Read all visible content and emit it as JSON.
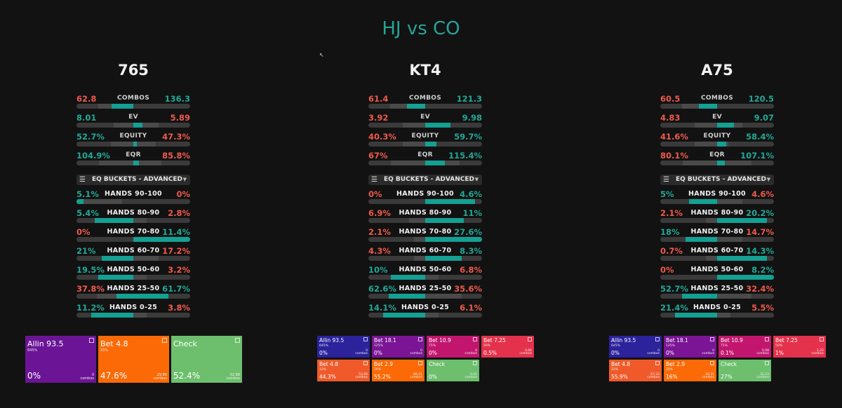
{
  "title": "HJ vs CO",
  "colors": {
    "teal": "#22a896",
    "red": "#ef5a4c",
    "allin": "#6b1596",
    "bet_orange": "#fb6a07",
    "check": "#6dbf6d",
    "blue": "#2b229c",
    "magenta": "#c2166e",
    "red_bet": "#e5324c",
    "orange_red": "#f05a2a"
  },
  "stat_labels": [
    "COMBOS",
    "EV",
    "EQUITY",
    "EQR"
  ],
  "dropdown_label": "EQ BUCKETS - ADVANCED",
  "bucket_labels": [
    "HANDS 90-100",
    "HANDS 80-90",
    "HANDS 70-80",
    "HANDS 60-70",
    "HANDS 50-60",
    "HANDS 25-50",
    "HANDS 0-25"
  ],
  "boards": [
    {
      "name": "765",
      "stats": [
        {
          "l": "62.8",
          "r": "136.3",
          "lc": "red",
          "rc": "teal",
          "fill": 0.31,
          "hl": [
            0.19,
            0.5
          ]
        },
        {
          "l": "8.01",
          "r": "5.89",
          "lc": "teal",
          "rc": "red",
          "fill": 0.58,
          "hl": [
            0.33,
            0.72
          ]
        },
        {
          "l": "52.7%",
          "r": "47.3%",
          "lc": "teal",
          "rc": "red",
          "fill": 0.53,
          "hl": [
            0.3,
            0.7
          ]
        },
        {
          "l": "104.9%",
          "r": "85.8%",
          "lc": "teal",
          "rc": "red",
          "fill": 0.55,
          "hl": [
            0.2,
            0.75
          ]
        }
      ],
      "buckets": [
        {
          "l": "5.1%",
          "r": "0%",
          "lc": "teal",
          "rc": "red",
          "fill": [
            0,
            0.06
          ],
          "hl": [
            0.06,
            0.4
          ]
        },
        {
          "l": "5.4%",
          "r": "2.8%",
          "lc": "teal",
          "rc": "red",
          "fill": [
            0.16,
            0.5
          ],
          "hl": [
            0.5,
            0.62
          ]
        },
        {
          "l": "0%",
          "r": "11.4%",
          "lc": "red",
          "rc": "teal",
          "fill": [
            0.5,
            1.0
          ],
          "hl": [
            0.0,
            0.0
          ]
        },
        {
          "l": "21%",
          "r": "17.2%",
          "lc": "teal",
          "rc": "red",
          "fill": [
            0.22,
            0.5
          ],
          "hl": [
            0.5,
            0.72
          ]
        },
        {
          "l": "19.5%",
          "r": "3.2%",
          "lc": "teal",
          "rc": "red",
          "fill": [
            0.19,
            0.5
          ],
          "hl": [
            0.5,
            0.62
          ]
        },
        {
          "l": "37.8%",
          "r": "61.7%",
          "lc": "red",
          "rc": "teal",
          "fill": [
            0.35,
            0.81
          ],
          "hl": [
            0.18,
            0.35
          ]
        },
        {
          "l": "11.2%",
          "r": "3.8%",
          "lc": "teal",
          "rc": "red",
          "fill": [
            0.13,
            0.5
          ],
          "hl": [
            0.5,
            0.62
          ]
        }
      ],
      "actions_layout": "big",
      "actions": [
        {
          "name": "Allin 93.5",
          "sub": "645%",
          "pct": "0%",
          "count": "0",
          "unit": "combos",
          "color": "#6b1596"
        },
        {
          "name": "Bet 4.8",
          "sub": "33%",
          "pct": "47.6%",
          "count": "29.89",
          "unit": "combos",
          "color": "#fb6a07"
        },
        {
          "name": "Check",
          "sub": "",
          "pct": "52.4%",
          "count": "32.88",
          "unit": "combos",
          "color": "#6dbf6d"
        }
      ]
    },
    {
      "name": "KT4",
      "stats": [
        {
          "l": "61.4",
          "r": "121.3",
          "lc": "red",
          "rc": "teal",
          "fill": 0.34,
          "hl": [
            0.19,
            0.5
          ]
        },
        {
          "l": "3.92",
          "r": "9.98",
          "lc": "red",
          "rc": "teal",
          "fill": 0.72,
          "hl": [
            0.3,
            0.72
          ]
        },
        {
          "l": "40.3%",
          "r": "59.7%",
          "lc": "red",
          "rc": "teal",
          "fill": 0.6,
          "hl": [
            0.3,
            0.6
          ]
        },
        {
          "l": "67%",
          "r": "115.4%",
          "lc": "red",
          "rc": "teal",
          "fill": 0.67,
          "hl": [
            0.2,
            0.8
          ]
        }
      ],
      "buckets": [
        {
          "l": "0%",
          "r": "4.6%",
          "lc": "red",
          "rc": "teal",
          "fill": [
            0.5,
            0.94
          ],
          "hl": [
            0.0,
            0.0
          ]
        },
        {
          "l": "6.9%",
          "r": "11%",
          "lc": "red",
          "rc": "teal",
          "fill": [
            0.5,
            0.84
          ],
          "hl": [
            0.36,
            0.5
          ]
        },
        {
          "l": "2.1%",
          "r": "27.6%",
          "lc": "red",
          "rc": "teal",
          "fill": [
            0.5,
            1.0
          ],
          "hl": [
            0.4,
            0.5
          ]
        },
        {
          "l": "4.3%",
          "r": "8.3%",
          "lc": "red",
          "rc": "teal",
          "fill": [
            0.5,
            0.82
          ],
          "hl": [
            0.4,
            0.5
          ]
        },
        {
          "l": "10%",
          "r": "6.8%",
          "lc": "teal",
          "rc": "red",
          "fill": [
            0.2,
            0.5
          ],
          "hl": [
            0.5,
            0.62
          ]
        },
        {
          "l": "62.6%",
          "r": "35.6%",
          "lc": "teal",
          "rc": "red",
          "fill": [
            0.18,
            0.5
          ],
          "hl": [
            0.5,
            0.82
          ]
        },
        {
          "l": "14.1%",
          "r": "6.1%",
          "lc": "teal",
          "rc": "red",
          "fill": [
            0.13,
            0.5
          ],
          "hl": [
            0.5,
            0.62
          ]
        }
      ],
      "actions_layout": "small",
      "actions": [
        {
          "name": "Allin 93.5",
          "sub": "645%",
          "pct": "0%",
          "count": "0",
          "unit": "combos",
          "color": "#2b229c"
        },
        {
          "name": "Bet 18.1",
          "sub": "125%",
          "pct": "0%",
          "count": "0",
          "unit": "combos",
          "color": "#7b1596"
        },
        {
          "name": "Bet 10.9",
          "sub": "75%",
          "pct": "0%",
          "count": "0",
          "unit": "combos",
          "color": "#c2166e"
        },
        {
          "name": "Bet 7.25",
          "sub": "50%",
          "pct": "0.5%",
          "count": "0.66",
          "unit": "combos",
          "color": "#e5324c"
        },
        {
          "name": "Bet 4.8",
          "sub": "33%",
          "pct": "44.3%",
          "count": "53.69",
          "unit": "combos",
          "color": "#f05a2a"
        },
        {
          "name": "Bet 2.9",
          "sub": "20%",
          "pct": "55.2%",
          "count": "66.91",
          "unit": "combos",
          "color": "#fb6a07"
        },
        {
          "name": "Check",
          "sub": "",
          "pct": "0%",
          "count": "0.02",
          "unit": "combos",
          "color": "#6dbf6d"
        }
      ]
    },
    {
      "name": "A75",
      "stats": [
        {
          "l": "60.5",
          "r": "120.5",
          "lc": "red",
          "rc": "teal",
          "fill": 0.34,
          "hl": [
            0.19,
            0.5
          ]
        },
        {
          "l": "4.83",
          "r": "9.07",
          "lc": "red",
          "rc": "teal",
          "fill": 0.65,
          "hl": [
            0.3,
            0.72
          ]
        },
        {
          "l": "41.6%",
          "r": "58.4%",
          "lc": "red",
          "rc": "teal",
          "fill": 0.58,
          "hl": [
            0.3,
            0.6
          ]
        },
        {
          "l": "80.1%",
          "r": "107.1%",
          "lc": "red",
          "rc": "teal",
          "fill": 0.57,
          "hl": [
            0.2,
            0.8
          ]
        }
      ],
      "buckets": [
        {
          "l": "5%",
          "r": "4.6%",
          "lc": "teal",
          "rc": "red",
          "fill": [
            0.25,
            0.5
          ],
          "hl": [
            0.5,
            0.72
          ]
        },
        {
          "l": "2.1%",
          "r": "20.2%",
          "lc": "red",
          "rc": "teal",
          "fill": [
            0.5,
            0.94
          ],
          "hl": [
            0.4,
            0.5
          ]
        },
        {
          "l": "18%",
          "r": "14.7%",
          "lc": "teal",
          "rc": "red",
          "fill": [
            0.22,
            0.5
          ],
          "hl": [
            0.5,
            0.72
          ]
        },
        {
          "l": "0.7%",
          "r": "14.3%",
          "lc": "red",
          "rc": "teal",
          "fill": [
            0.5,
            0.94
          ],
          "hl": [
            0.4,
            0.5
          ]
        },
        {
          "l": "0%",
          "r": "8.2%",
          "lc": "red",
          "rc": "teal",
          "fill": [
            0.5,
            1.0
          ],
          "hl": [
            0.0,
            0.0
          ]
        },
        {
          "l": "52.7%",
          "r": "32.4%",
          "lc": "teal",
          "rc": "red",
          "fill": [
            0.19,
            0.5
          ],
          "hl": [
            0.5,
            0.8
          ]
        },
        {
          "l": "21.4%",
          "r": "5.5%",
          "lc": "teal",
          "rc": "red",
          "fill": [
            0.13,
            0.5
          ],
          "hl": [
            0.5,
            0.62
          ]
        }
      ],
      "actions_layout": "small",
      "actions": [
        {
          "name": "Allin 93.5",
          "sub": "645%",
          "pct": "0%",
          "count": "0",
          "unit": "combos",
          "color": "#2b229c"
        },
        {
          "name": "Bet 18.1",
          "sub": "125%",
          "pct": "0%",
          "count": "0",
          "unit": "combos",
          "color": "#7b1596"
        },
        {
          "name": "Bet 10.9",
          "sub": "75%",
          "pct": "0.1%",
          "count": "0.08",
          "unit": "combos",
          "color": "#c2166e"
        },
        {
          "name": "Bet 7.25",
          "sub": "50%",
          "pct": "1%",
          "count": "1.22",
          "unit": "combos",
          "color": "#e5324c"
        },
        {
          "name": "Bet 4.8",
          "sub": "33%",
          "pct": "55.9%",
          "count": "67.33",
          "unit": "combos",
          "color": "#f05a2a"
        },
        {
          "name": "Bet 2.9",
          "sub": "20%",
          "pct": "16%",
          "count": "19.31",
          "unit": "combos",
          "color": "#fb6a07"
        },
        {
          "name": "Check",
          "sub": "",
          "pct": "27%",
          "count": "32.53",
          "unit": "combos",
          "color": "#6dbf6d"
        }
      ]
    }
  ]
}
